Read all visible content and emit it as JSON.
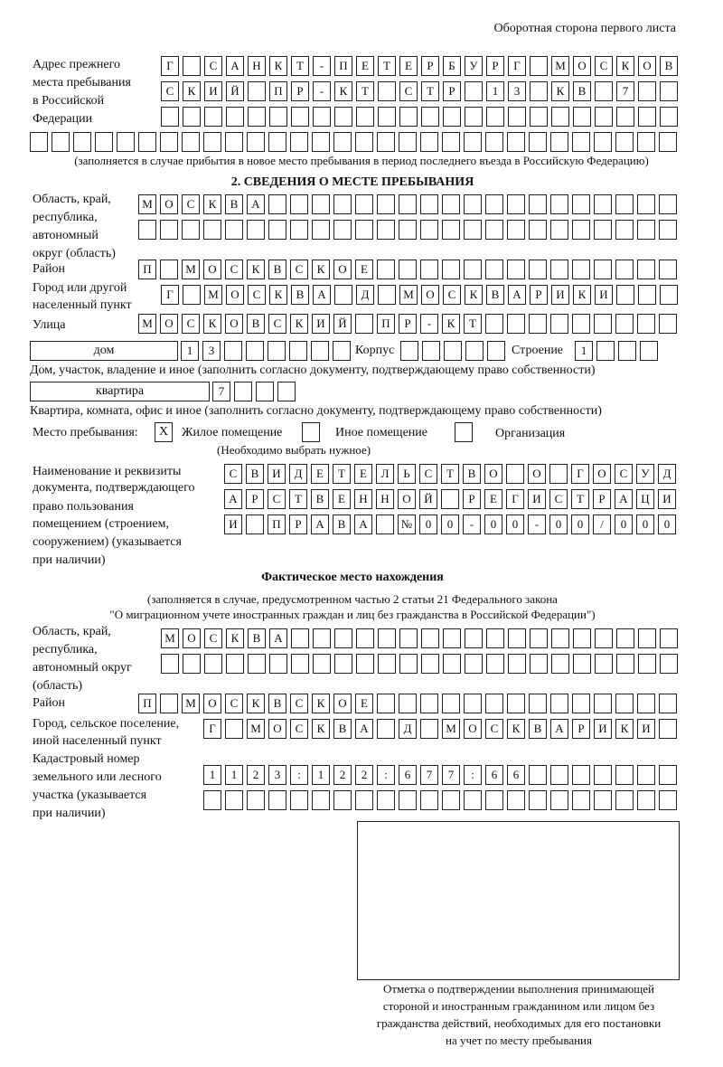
{
  "header": "Оборотная сторона первого листа",
  "prev_address": {
    "label": [
      "Адрес прежнего",
      "места пребывания",
      "в Российской",
      "Федерации"
    ],
    "rows": [
      "Г САНКТ-ПЕТЕРБУРГ МОСКОВ",
      "СКИЙ ПР-КТ СТР 13 КВ 7  ",
      "                        ",
      "                              "
    ],
    "note": "(заполняется в случае прибытия в новое место пребывания в период последнего въезда в Российскую Федерацию)"
  },
  "section2": {
    "title": "2. СВЕДЕНИЯ О МЕСТЕ ПРЕБЫВАНИЯ",
    "region_label": [
      "Область, край,",
      "республика,",
      "автономный",
      "округ (область)"
    ],
    "region_rows": [
      "МОСКВА                   ",
      "                         "
    ],
    "district_label": "Район",
    "district_row": "П МОСКВСКОЕ              ",
    "city_label": [
      "Город или другой",
      "населенный пункт"
    ],
    "city_row": "Г МОСКВА Д МОСКВАРИКИ   ",
    "street_label": "Улица",
    "street_row": "МОСКОВСКИЙ ПР-КТ         ",
    "house_type": "дом",
    "house_row": "13      ",
    "korpus_label": "Корпус",
    "korpus_row": "     ",
    "building_label": "Строение",
    "building_row": "1   ",
    "house_note": "Дом, участок, владение и иное (заполнить согласно документу, подтверждающему право собственности)",
    "flat_type": "квартира",
    "flat_row": "7   ",
    "flat_note": "Квартира, комната, офис и иное (заполнить согласно документу, подтверждающему право собственности)",
    "stay_label": "Место пребывания:",
    "options": [
      {
        "label": "Жилое помещение",
        "mark": "X"
      },
      {
        "label": "Иное помещение",
        "mark": ""
      },
      {
        "label": "Организация",
        "mark": ""
      }
    ],
    "choose_note": "(Необходимо выбрать нужное)",
    "doc_label": [
      "Наименование и реквизиты",
      "документа, подтверждающего",
      "право пользования",
      "помещением (строением,",
      "сооружением) (указывается",
      "при наличии)"
    ],
    "doc_rows": [
      "СВИДЕТЕЛЬСТВО О ГОСУД",
      "АРСТВЕННОЙ РЕГИСТРАЦИ",
      "И ПРАВА №00-00-00/000"
    ]
  },
  "actual": {
    "title": "Фактическое место нахождения",
    "note": [
      "(заполняется в случае, предусмотренном частью 2 статьи 21 Федерального закона",
      "\"О миграционном учете иностранных граждан и лиц без гражданства в Российской Федерации\")"
    ],
    "region_label": [
      "Область, край,",
      "республика,",
      "автономный округ",
      "(область)"
    ],
    "region_rows": [
      "МОСКВА                  ",
      "                        "
    ],
    "district_label": "Район",
    "district_row": "П МОСКВСКОЕ              ",
    "city_label": [
      "Город, сельское поселение,",
      "иной населенный пункт"
    ],
    "city_row": "Г МОСКВА Д МОСКВАРИКИ ",
    "cadastre_label": [
      "Кадастровый номер",
      "земельного или лесного",
      "участка (указывается",
      "при наличии)"
    ],
    "cadastre_rows": [
      "1123:122:677:66       ",
      "                      "
    ]
  },
  "stamp_caption": [
    "Отметка о подтверждении выполнения принимающей",
    "стороной и иностранным гражданином или лицом без",
    "гражданства действий, необходимых для его постановки",
    "на учет по месту пребывания"
  ]
}
